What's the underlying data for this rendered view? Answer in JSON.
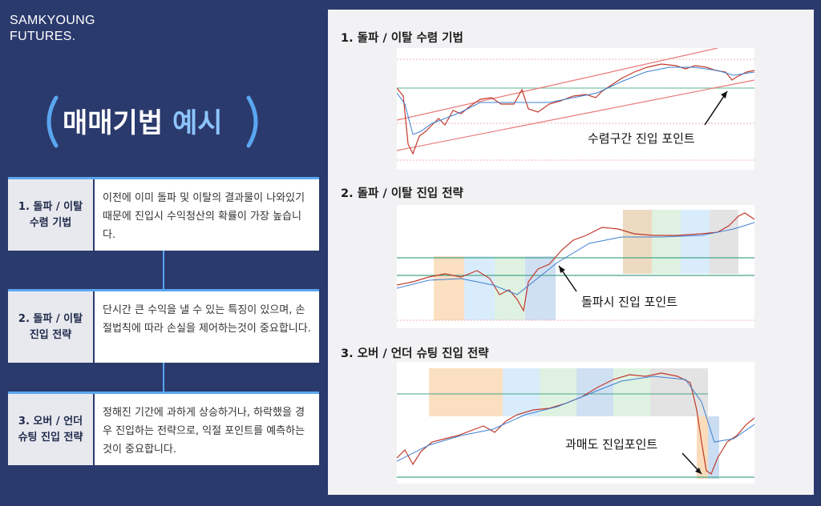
{
  "logo": {
    "line1": "SAMKYOUNG",
    "line2": "FUTURES."
  },
  "title": {
    "main": "매매기법",
    "accent": "예시"
  },
  "methods": [
    {
      "label_line1": "1. 돌파 / 이탈",
      "label_line2": "수렴 기법",
      "description": "이전에 이미 돌파 및 이탈의 결과물이 나와있기 때문에 진입시 수익청산의 확률이 가장 높습니다."
    },
    {
      "label_line1": "2. 돌파 / 이탈",
      "label_line2": "진입 전략",
      "description": "단시간 큰 수익을 낼 수 있는 특징이 있으며, 손절법칙에 따라 손실을 제어하는것이 중요합니다."
    },
    {
      "label_line1": "3. 오버 / 언더",
      "label_line2": "슈팅 진입 전략",
      "description": "정해진 기간에 과하게 상승하거나, 하락했을 경우 진입하는 전략으로, 익절 포인트를 예측하는것이   중요합니다."
    }
  ],
  "examples": [
    {
      "title": "1. 돌파 / 이탈 수렴 기법",
      "annotation": "수렴구간 진입 포인트"
    },
    {
      "title": "2. 돌파 / 이탈 진입 전략",
      "annotation": "돌파시 진입 포인트"
    },
    {
      "title": "3. 오버 / 언더 슈팅 진입 전략",
      "annotation": "과매도 진입포인트"
    }
  ],
  "colors": {
    "background": "#2b3a6d",
    "accent": "#8ec5ff",
    "connector": "#5aa6f0",
    "panel": "#f2f2f4"
  }
}
